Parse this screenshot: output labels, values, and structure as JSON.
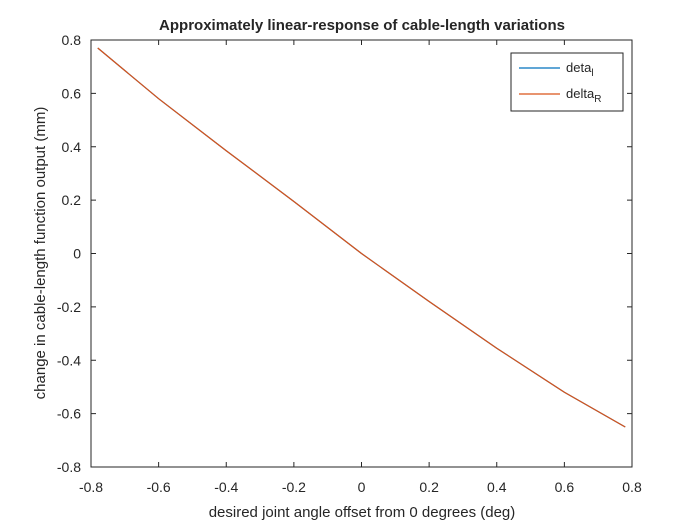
{
  "chart_data": {
    "type": "line",
    "title": "Approximately linear-response of cable-length variations",
    "xlabel": "desired joint angle offset from 0 degrees (deg)",
    "ylabel": "change in cable-length function output (mm)",
    "xlim": [
      -0.8,
      0.8
    ],
    "ylim": [
      -0.8,
      0.8
    ],
    "xticks": [
      -0.8,
      -0.6,
      -0.4,
      -0.2,
      0,
      0.2,
      0.4,
      0.6,
      0.8
    ],
    "yticks": [
      -0.8,
      -0.6,
      -0.4,
      -0.2,
      0,
      0.2,
      0.4,
      0.6,
      0.8
    ],
    "grid": false,
    "legend_position": "top-right",
    "series": [
      {
        "name_base": "deta",
        "name_sub": "l",
        "color": "#0072BD",
        "x": [
          -0.78,
          -0.6,
          -0.4,
          -0.2,
          0,
          0.2,
          0.4,
          0.6,
          0.78
        ],
        "y": [
          0.77,
          0.58,
          0.385,
          0.195,
          0.0,
          -0.18,
          -0.355,
          -0.52,
          -0.65
        ]
      },
      {
        "name_base": "delta",
        "name_sub": "R",
        "color": "#D95319",
        "x": [
          -0.78,
          -0.6,
          -0.4,
          -0.2,
          0,
          0.2,
          0.4,
          0.6,
          0.78
        ],
        "y": [
          0.77,
          0.58,
          0.385,
          0.195,
          0.0,
          -0.18,
          -0.355,
          -0.52,
          -0.65
        ]
      }
    ]
  }
}
